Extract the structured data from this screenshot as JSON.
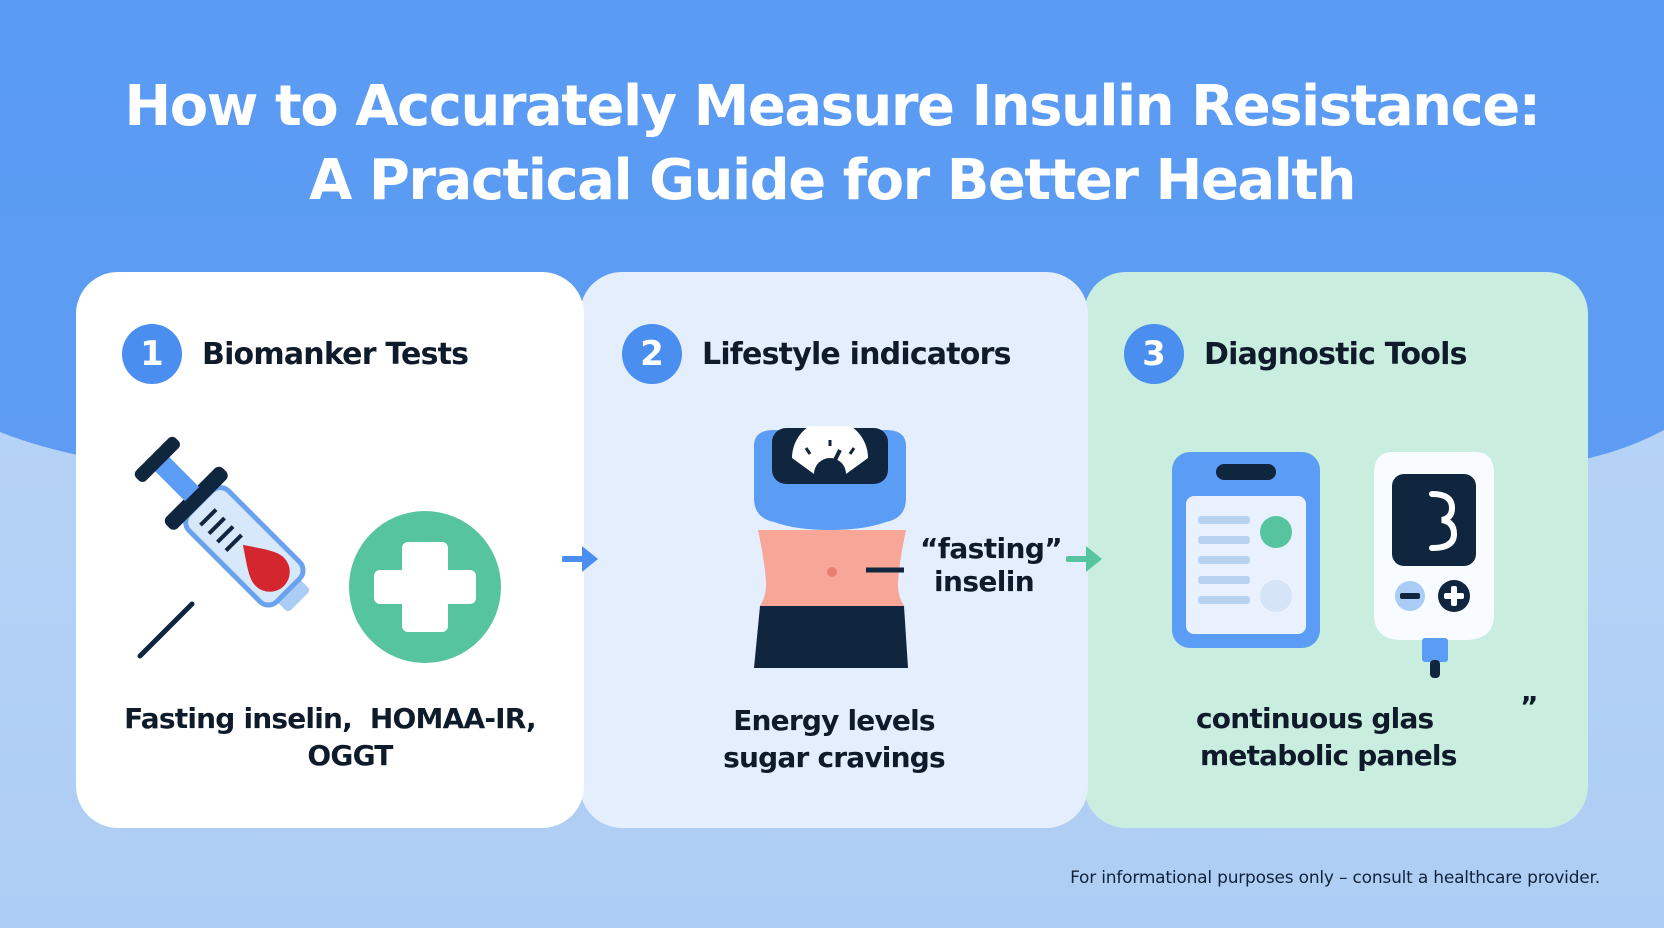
{
  "title": {
    "line1": "How to Accurately Measure Insulin Resistance:",
    "line2": "A Practical Guide for Better Health"
  },
  "cards": [
    {
      "number": "1",
      "title": "Biomanker Tests",
      "illustration": [
        "syringe-icon",
        "medical-cross-icon"
      ],
      "caption_line1": "Fasting inselin,  HOMAA-IR,",
      "caption_line2": "OGGT"
    },
    {
      "number": "2",
      "title": "Lifestyle indicators",
      "illustration": [
        "scale-icon",
        "waist-icon"
      ],
      "annotation_line1": "“fasting”",
      "annotation_line2": "inselin",
      "caption_line1": "Energy levels",
      "caption_line2": "sugar cravings"
    },
    {
      "number": "3",
      "title": "Diagnostic Tools",
      "illustration": [
        "clipboard-icon",
        "glucose-monitor-icon"
      ],
      "caption_line1": "continuous glas",
      "caption_line2": "metabolic panels",
      "stray_mark": "”"
    }
  ],
  "footer": "For informational purposes only – consult a healthcare provider.",
  "colors": {
    "header_blue": "#5b9cf4",
    "accent_blue": "#4a8ef0",
    "green": "#57c4a0",
    "navy": "#10263f",
    "blood_red": "#d3262e",
    "skin": "#f7a697"
  }
}
